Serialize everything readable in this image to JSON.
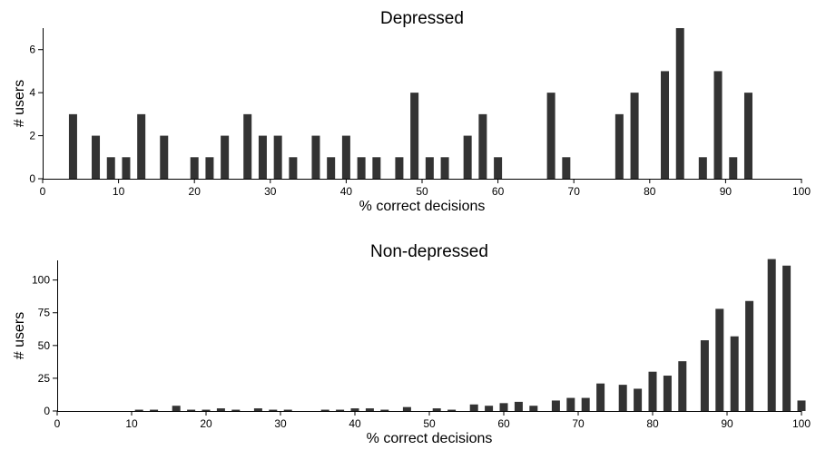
{
  "chart_data": [
    {
      "type": "bar",
      "title": "Depressed",
      "xlabel": "% correct decisions",
      "ylabel": "# users",
      "xlim": [
        0,
        100
      ],
      "ylim": [
        0,
        7
      ],
      "xticks": [
        0,
        10,
        20,
        30,
        40,
        50,
        60,
        70,
        80,
        90,
        100
      ],
      "yticks": [
        0,
        2,
        4,
        6
      ],
      "bar_color": "#333333",
      "grid": false,
      "x": [
        4,
        7,
        9,
        11,
        13,
        16,
        20,
        22,
        24,
        27,
        29,
        31,
        33,
        36,
        38,
        40,
        42,
        44,
        47,
        49,
        51,
        53,
        56,
        58,
        60,
        67,
        69,
        76,
        78,
        82,
        84,
        87,
        89,
        91,
        93
      ],
      "values": [
        3,
        2,
        1,
        1,
        3,
        2,
        1,
        1,
        2,
        3,
        2,
        2,
        1,
        2,
        1,
        2,
        1,
        1,
        1,
        4,
        1,
        1,
        2,
        3,
        1,
        4,
        1,
        3,
        4,
        5,
        7,
        1,
        5,
        1,
        4
      ]
    },
    {
      "type": "bar",
      "title": "Non-depressed",
      "xlabel": "% correct decisions",
      "ylabel": "# users",
      "xlim": [
        0,
        100
      ],
      "ylim": [
        0,
        115
      ],
      "xticks": [
        0,
        10,
        20,
        30,
        40,
        50,
        60,
        70,
        80,
        90,
        100
      ],
      "yticks": [
        0,
        25,
        50,
        75,
        100
      ],
      "bar_color": "#333333",
      "grid": false,
      "x": [
        11,
        13,
        16,
        18,
        20,
        22,
        24,
        27,
        29,
        31,
        36,
        38,
        40,
        42,
        44,
        47,
        51,
        53,
        56,
        58,
        60,
        62,
        64,
        67,
        69,
        71,
        73,
        76,
        78,
        80,
        82,
        84,
        87,
        89,
        91,
        93,
        96,
        98,
        100
      ],
      "values": [
        1,
        1,
        4,
        1,
        1,
        2,
        1,
        2,
        1,
        1,
        1,
        1,
        2,
        2,
        1,
        3,
        2,
        1,
        5,
        4,
        6,
        7,
        4,
        8,
        10,
        10,
        21,
        20,
        17,
        30,
        27,
        38,
        54,
        78,
        57,
        84,
        116,
        111,
        8
      ]
    }
  ]
}
